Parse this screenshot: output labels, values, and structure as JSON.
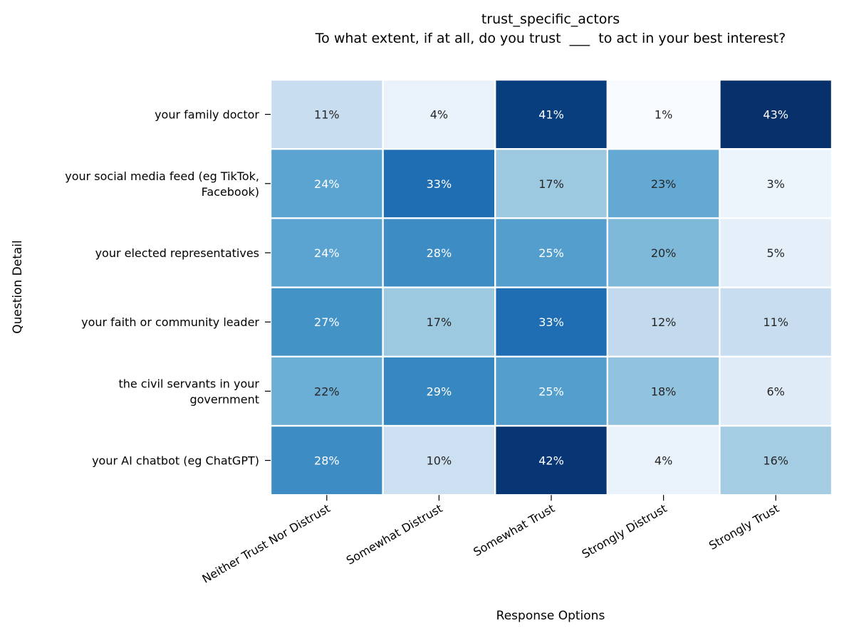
{
  "chart_data": {
    "type": "heatmap",
    "title": "trust_specific_actors",
    "subtitle": "To what extent, if at all, do you trust  ___  to act in your best interest?",
    "xlabel": "Response Options",
    "ylabel": "Question Detail",
    "x_categories": [
      "Neither Trust Nor Distrust",
      "Somewhat Distrust",
      "Somewhat Trust",
      "Strongly Distrust",
      "Strongly Trust"
    ],
    "y_categories": [
      [
        "your family doctor"
      ],
      [
        "your social media feed (eg TikTok,",
        "Facebook)"
      ],
      [
        "your elected representatives"
      ],
      [
        "your faith or community leader"
      ],
      [
        "the civil servants in your",
        "government"
      ],
      [
        "your AI chatbot (eg ChatGPT)"
      ]
    ],
    "values": [
      [
        11,
        4,
        41,
        1,
        43
      ],
      [
        24,
        33,
        17,
        23,
        3
      ],
      [
        24,
        28,
        25,
        20,
        5
      ],
      [
        27,
        17,
        33,
        12,
        11
      ],
      [
        22,
        29,
        25,
        18,
        6
      ],
      [
        28,
        10,
        42,
        4,
        16
      ]
    ],
    "value_suffix": "%",
    "colormap": "Blues",
    "vmin": 1,
    "vmax": 43,
    "colorbar": false,
    "grid": false
  }
}
